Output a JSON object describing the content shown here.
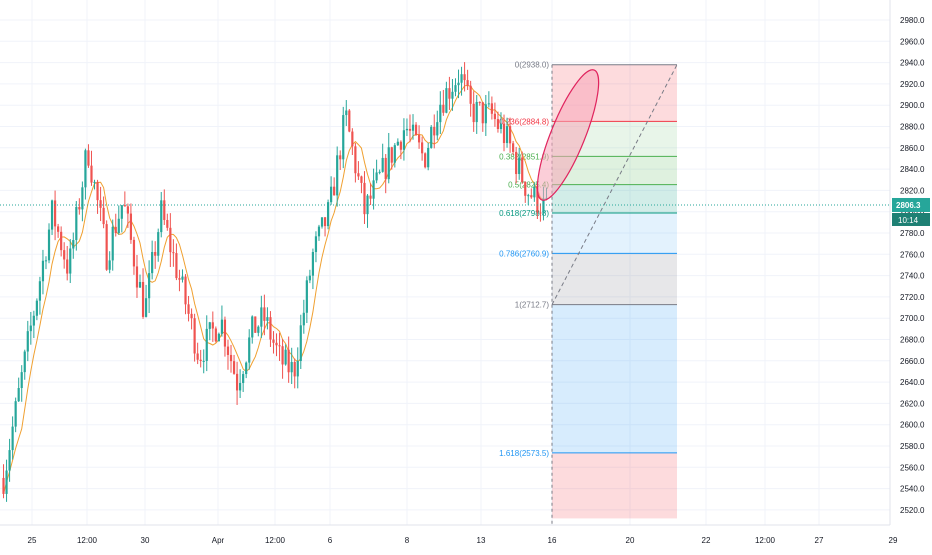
{
  "chart_data": {
    "type": "candlestick",
    "y_axis_ticks": [
      2520,
      2540,
      2560,
      2580,
      2600,
      2620,
      2640,
      2660,
      2680,
      2700,
      2720,
      2740,
      2760,
      2780,
      2800,
      2820,
      2840,
      2860,
      2880,
      2900,
      2920,
      2940,
      2960,
      2980
    ],
    "y_axis_labels": [
      "2520.0",
      "2540.0",
      "2560.0",
      "2580.0",
      "2600.0",
      "2620.0",
      "2640.0",
      "2660.0",
      "2680.0",
      "2700.0",
      "2720.0",
      "2740.0",
      "2760.0",
      "2780.0",
      "2800.0",
      "2820.0",
      "2840.0",
      "2860.0",
      "2880.0",
      "2900.0",
      "2920.0",
      "2940.0",
      "2960.0",
      "2980.0"
    ],
    "ylim": [
      2512,
      2990
    ],
    "x_axis_labels": [
      "25",
      "12:00",
      "30",
      "Apr",
      "12:00",
      "6",
      "8",
      "13",
      "16",
      "20",
      "22",
      "12:00",
      "27",
      "29"
    ],
    "current_price": "2806.3",
    "countdown": "10:14",
    "price_key_points": [
      {
        "t": 0,
        "p": 2550
      },
      {
        "t": 0.05,
        "p": 2690
      },
      {
        "t": 0.09,
        "p": 2800
      },
      {
        "t": 0.12,
        "p": 2745
      },
      {
        "t": 0.155,
        "p": 2860
      },
      {
        "t": 0.19,
        "p": 2760
      },
      {
        "t": 0.22,
        "p": 2810
      },
      {
        "t": 0.26,
        "p": 2705
      },
      {
        "t": 0.29,
        "p": 2800
      },
      {
        "t": 0.33,
        "p": 2725
      },
      {
        "t": 0.36,
        "p": 2665
      },
      {
        "t": 0.4,
        "p": 2700
      },
      {
        "t": 0.43,
        "p": 2640
      },
      {
        "t": 0.46,
        "p": 2690
      },
      {
        "t": 0.48,
        "p": 2700
      },
      {
        "t": 0.51,
        "p": 2660
      },
      {
        "t": 0.535,
        "p": 2650
      },
      {
        "t": 0.57,
        "p": 2760
      },
      {
        "t": 0.6,
        "p": 2800
      },
      {
        "t": 0.63,
        "p": 2890
      },
      {
        "t": 0.665,
        "p": 2800
      },
      {
        "t": 0.71,
        "p": 2850
      },
      {
        "t": 0.74,
        "p": 2880
      },
      {
        "t": 0.775,
        "p": 2850
      },
      {
        "t": 0.8,
        "p": 2900
      },
      {
        "t": 0.84,
        "p": 2930
      },
      {
        "t": 0.86,
        "p": 2895
      },
      {
        "t": 0.9,
        "p": 2890
      },
      {
        "t": 0.93,
        "p": 2865
      },
      {
        "t": 0.965,
        "p": 2820
      },
      {
        "t": 1,
        "p": 2802
      }
    ],
    "fibonacci": [
      {
        "label": "0(2938.0)",
        "price": 2938.0,
        "color": "#787b86"
      },
      {
        "label": "0.236(2884.8)",
        "price": 2884.8,
        "color": "#f23645"
      },
      {
        "label": "0.382(2851.9)",
        "price": 2851.9,
        "color": "#4caf50"
      },
      {
        "label": "0.5(2825.4)",
        "price": 2825.4,
        "color": "#4caf50"
      },
      {
        "label": "0.618(2798.8)",
        "price": 2798.8,
        "color": "#089981"
      },
      {
        "label": "0.786(2760.9)",
        "price": 2760.9,
        "color": "#2196f3"
      },
      {
        "label": "1(2712.7)",
        "price": 2712.7,
        "color": "#787b86"
      },
      {
        "label": "1.618(2573.5)",
        "price": 2573.5,
        "color": "#2196f3"
      }
    ],
    "fib_zones": [
      {
        "top": 2938.0,
        "bottom": 2884.8,
        "color": "#f23645"
      },
      {
        "top": 2884.8,
        "bottom": 2851.9,
        "color": "#81c784"
      },
      {
        "top": 2851.9,
        "bottom": 2825.4,
        "color": "#4caf50"
      },
      {
        "top": 2825.4,
        "bottom": 2798.8,
        "color": "#089981"
      },
      {
        "top": 2798.8,
        "bottom": 2760.9,
        "color": "#64b5f6"
      },
      {
        "top": 2760.9,
        "bottom": 2712.7,
        "color": "#787b86"
      },
      {
        "top": 2712.7,
        "bottom": 2573.5,
        "color": "#2196f3"
      },
      {
        "top": 2573.5,
        "bottom": 2512,
        "color": "#f23645"
      }
    ],
    "colors": {
      "up": "#26a69a",
      "down": "#ef5350",
      "ma": "#f0a030",
      "grid": "#f0f3fa",
      "price_line": "#26a69a",
      "ellipse": "#e0245e",
      "axis_text": "#131722"
    }
  }
}
